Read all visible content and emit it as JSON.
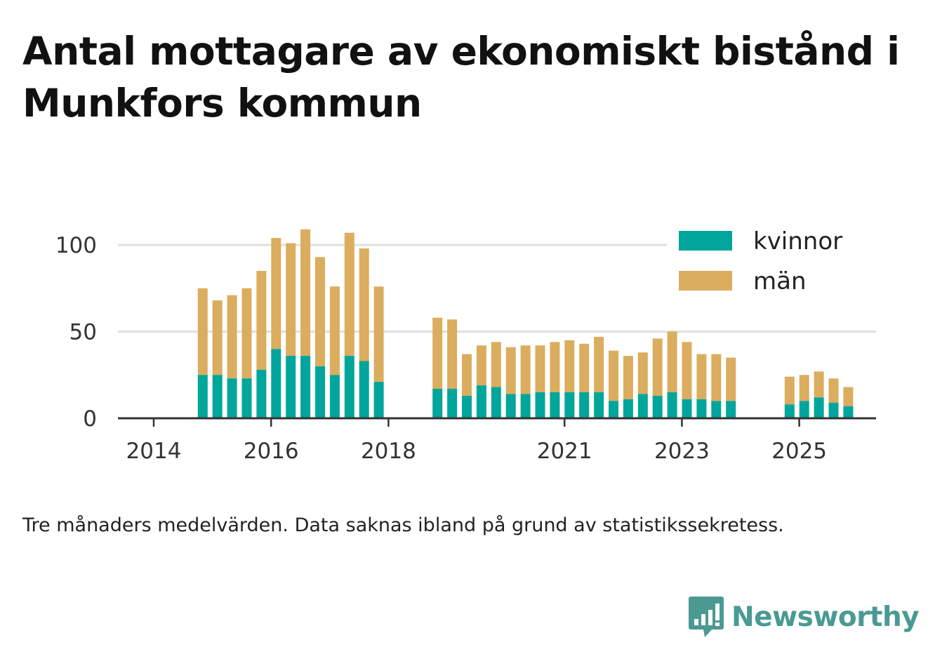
{
  "title": "Antal mottagare av ekonomiskt bistånd i Munkfors kommun",
  "note": "Tre månaders medelvärden. Data saknas ibland på grund av statistikssekretess.",
  "brand": {
    "name": "Newsworthy",
    "icon": "bar-chart-speech-bubble-icon",
    "color": "#4a9a93"
  },
  "colors": {
    "kvinnor": "#00a59b",
    "man": "#dbad5e",
    "grid": "#e0e0e0",
    "axis": "#333333"
  },
  "chart_data": {
    "type": "bar",
    "stacked": true,
    "title": "Antal mottagare av ekonomiskt bistånd i Munkfors kommun",
    "xlabel": "",
    "ylabel": "",
    "ylim": [
      0,
      110
    ],
    "yticks": [
      0,
      50,
      100
    ],
    "xticks": [
      "2014",
      "2016",
      "2018",
      "2021",
      "2023",
      "2025"
    ],
    "grid": true,
    "legend_position": "top-right",
    "series_names": [
      "kvinnor",
      "män"
    ],
    "categories": [
      "2014-Q3",
      "2014-Q4",
      "2015-Q1",
      "2015-Q2",
      "2015-Q3",
      "2015-Q4",
      "2016-Q1",
      "2016-Q2",
      "2016-Q3",
      "2016-Q4",
      "2017-Q1",
      "2017-Q2",
      "2017-Q3",
      "2018-Q3",
      "2018-Q4",
      "2019-Q1",
      "2019-Q2",
      "2019-Q3",
      "2019-Q4",
      "2020-Q1",
      "2020-Q2",
      "2020-Q3",
      "2020-Q4",
      "2021-Q1",
      "2021-Q2",
      "2021-Q3",
      "2021-Q4",
      "2022-Q1",
      "2022-Q2",
      "2022-Q3",
      "2022-Q4",
      "2023-Q1",
      "2023-Q2",
      "2023-Q3",
      "2024-Q3",
      "2024-Q4",
      "2025-Q1",
      "2025-Q2",
      "2025-Q3"
    ],
    "series": [
      {
        "name": "kvinnor",
        "values": [
          25,
          25,
          23,
          23,
          28,
          40,
          36,
          36,
          30,
          25,
          36,
          33,
          21,
          17,
          17,
          13,
          19,
          18,
          14,
          14,
          15,
          15,
          15,
          15,
          15,
          10,
          11,
          14,
          13,
          15,
          11,
          11,
          10,
          10,
          8,
          10,
          12,
          9,
          7
        ]
      },
      {
        "name": "män",
        "values": [
          50,
          43,
          48,
          52,
          57,
          64,
          65,
          73,
          63,
          51,
          71,
          65,
          55,
          41,
          40,
          24,
          23,
          26,
          27,
          28,
          27,
          29,
          30,
          28,
          32,
          29,
          25,
          24,
          33,
          35,
          33,
          26,
          27,
          25,
          16,
          15,
          15,
          14,
          11
        ]
      }
    ]
  }
}
